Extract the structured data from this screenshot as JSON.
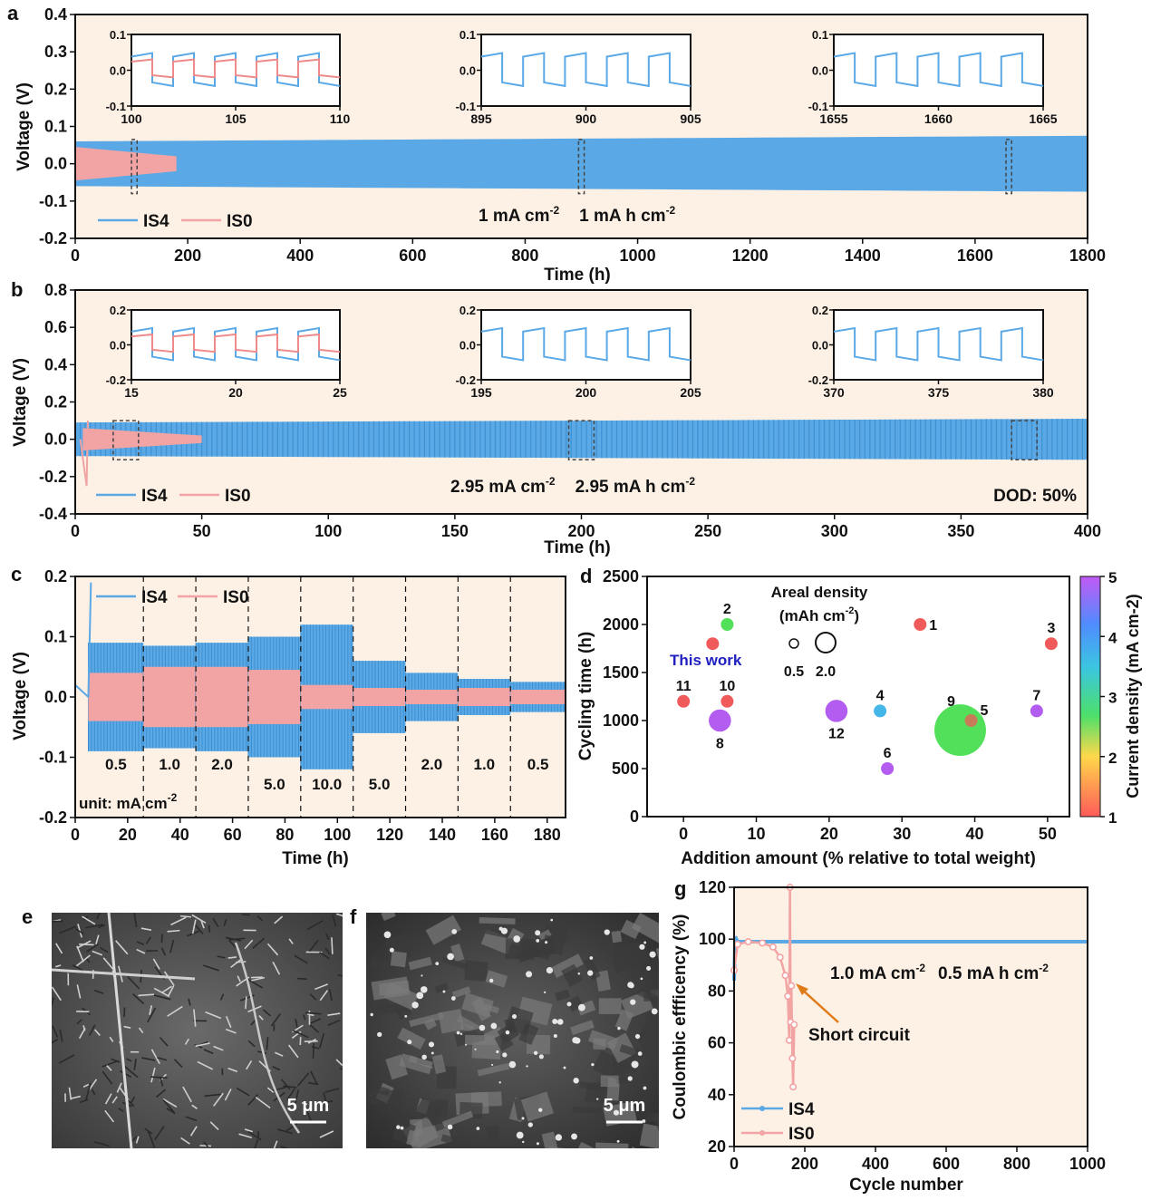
{
  "chart_data": [
    {
      "panel": "a",
      "type": "line",
      "xlabel": "Time (h)",
      "ylabel": "Voltage (V)",
      "xlim": [
        0,
        1800
      ],
      "ylim": [
        -0.2,
        0.4
      ],
      "xticks": [
        "0",
        "200",
        "400",
        "600",
        "800",
        "1000",
        "1200",
        "1400",
        "1600",
        "1800"
      ],
      "yticks": [
        "-0.2",
        "-0.1",
        "0.0",
        "0.1",
        "0.2",
        "0.3",
        "0.4"
      ],
      "annotation": [
        "1 mA cm",
        "-2",
        "1 mA h cm",
        "-2"
      ],
      "series": [
        {
          "name": "IS4",
          "color": "#5aa9e6",
          "duration_h": 1800,
          "amplitude_start": 0.06,
          "amplitude_end": 0.075
        },
        {
          "name": "IS0",
          "color": "#f2a3a3",
          "duration_h": 180,
          "amplitude_start": 0.045,
          "amplitude_end": 0.02
        }
      ],
      "zoom_windows": [
        [
          100,
          110
        ],
        [
          895,
          905
        ],
        [
          1655,
          1665
        ]
      ],
      "insets": [
        {
          "xlim": [
            100,
            110
          ],
          "ylim": [
            -0.1,
            0.1
          ],
          "xticks": [
            "100",
            "105",
            "110"
          ],
          "yticks": [
            "0.1",
            "0.0",
            "-0.1"
          ]
        },
        {
          "xlim": [
            895,
            905
          ],
          "ylim": [
            -0.1,
            0.1
          ],
          "xticks": [
            "895",
            "900",
            "905"
          ],
          "yticks": [
            "0.1",
            "0.0",
            "-0.1"
          ]
        },
        {
          "xlim": [
            1655,
            1665
          ],
          "ylim": [
            -0.1,
            0.1
          ],
          "xticks": [
            "1655",
            "1660",
            "1665"
          ],
          "yticks": [
            "0.1",
            "0.0",
            "-0.1"
          ]
        }
      ]
    },
    {
      "panel": "b",
      "type": "line",
      "xlabel": "Time (h)",
      "ylabel": "Voltage (V)",
      "xlim": [
        0,
        400
      ],
      "ylim": [
        -0.4,
        0.8
      ],
      "xticks": [
        "0",
        "50",
        "100",
        "150",
        "200",
        "250",
        "300",
        "350",
        "400"
      ],
      "yticks": [
        "-0.4",
        "-0.2",
        "0.0",
        "0.2",
        "0.4",
        "0.6",
        "0.8"
      ],
      "annotation": [
        "2.95 mA cm",
        "-2",
        "2.95 mA h cm",
        "-2"
      ],
      "dod_label": "DOD: 50%",
      "series": [
        {
          "name": "IS4",
          "color": "#5aa9e6",
          "duration_h": 400,
          "amplitude_start": 0.09,
          "amplitude_end": 0.11
        },
        {
          "name": "IS0",
          "color": "#f2a3a3",
          "duration_h": 50,
          "amplitude_start": 0.06,
          "amplitude_end": 0.02
        }
      ],
      "zoom_windows": [
        [
          15,
          25
        ],
        [
          195,
          205
        ],
        [
          370,
          380
        ]
      ],
      "insets": [
        {
          "xlim": [
            15,
            25
          ],
          "ylim": [
            -0.2,
            0.2
          ],
          "xticks": [
            "15",
            "20",
            "25"
          ],
          "yticks": [
            "0.2",
            "0.0",
            "-0.2"
          ]
        },
        {
          "xlim": [
            195,
            205
          ],
          "ylim": [
            -0.2,
            0.2
          ],
          "xticks": [
            "195",
            "200",
            "205"
          ],
          "yticks": [
            "0.2",
            "0.0",
            "-0.2"
          ]
        },
        {
          "xlim": [
            370,
            380
          ],
          "ylim": [
            -0.2,
            0.2
          ],
          "xticks": [
            "370",
            "375",
            "380"
          ],
          "yticks": [
            "0.2",
            "0.0",
            "-0.2"
          ]
        }
      ]
    },
    {
      "panel": "c",
      "type": "line",
      "xlabel": "Time (h)",
      "ylabel": "Voltage (V)",
      "xlim": [
        0,
        187
      ],
      "ylim": [
        -0.2,
        0.2
      ],
      "xticks": [
        "0",
        "20",
        "40",
        "60",
        "80",
        "100",
        "120",
        "140",
        "160",
        "180"
      ],
      "yticks": [
        "-0.2",
        "-0.1",
        "0.0",
        "0.1",
        "0.2"
      ],
      "unit_label": [
        "unit: mA cm",
        "-2"
      ],
      "segments": [
        {
          "start": 5,
          "end": 26,
          "current": "0.5",
          "is4_amp": 0.09,
          "is0_amp": 0.04
        },
        {
          "start": 26,
          "end": 46,
          "current": "1.0",
          "is4_amp": 0.085,
          "is0_amp": 0.05
        },
        {
          "start": 46,
          "end": 66,
          "current": "2.0",
          "is4_amp": 0.09,
          "is0_amp": 0.05
        },
        {
          "start": 66,
          "end": 86,
          "current": "5.0",
          "is4_amp": 0.1,
          "is0_amp": 0.045
        },
        {
          "start": 86,
          "end": 106,
          "current": "10.0",
          "is4_amp": 0.12,
          "is0_amp": 0.02
        },
        {
          "start": 106,
          "end": 126,
          "current": "5.0",
          "is4_amp": 0.06,
          "is0_amp": 0.015
        },
        {
          "start": 126,
          "end": 146,
          "current": "2.0",
          "is4_amp": 0.04,
          "is0_amp": 0.012
        },
        {
          "start": 146,
          "end": 166,
          "current": "1.0",
          "is4_amp": 0.03,
          "is0_amp": 0.015
        },
        {
          "start": 166,
          "end": 187,
          "current": "0.5",
          "is4_amp": 0.025,
          "is0_amp": 0.012
        }
      ],
      "series": [
        {
          "name": "IS4",
          "color": "#5aa9e6"
        },
        {
          "name": "IS0",
          "color": "#f2a3a3"
        }
      ]
    },
    {
      "panel": "d",
      "type": "scatter",
      "xlabel": "Addition amount (% relative to total weight)",
      "ylabel": "Cycling time (h)",
      "colorbar_label": "Current density (mA cm-2)",
      "colorbar_ticks": [
        "1",
        "2",
        "3",
        "4",
        "5"
      ],
      "xlim": [
        -5,
        53
      ],
      "ylim": [
        0,
        2500
      ],
      "xticks": [
        "0",
        "10",
        "20",
        "30",
        "40",
        "50"
      ],
      "yticks": [
        "0",
        "500",
        "1000",
        "1500",
        "2000",
        "2500"
      ],
      "legend_title": [
        "Areal density",
        "(mAh cm",
        "-2",
        ")"
      ],
      "legend_sizes": [
        "0.5",
        "2.0"
      ],
      "this_work_label": "This work",
      "points": [
        {
          "label": "",
          "x": 4,
          "y": 1800,
          "current": 1,
          "areal": 1.0
        },
        {
          "label": "11",
          "x": 0,
          "y": 1200,
          "current": 1,
          "areal": 1.0
        },
        {
          "label": "10",
          "x": 6,
          "y": 1200,
          "current": 1,
          "areal": 1.0
        },
        {
          "label": "2",
          "x": 6,
          "y": 2000,
          "current": 2,
          "areal": 1.0
        },
        {
          "label": "8",
          "x": 5,
          "y": 1000,
          "current": 4.5,
          "areal": 2.6
        },
        {
          "label": "1",
          "x": 32.5,
          "y": 2000,
          "current": 1,
          "areal": 1.0
        },
        {
          "label": "3",
          "x": 50.5,
          "y": 1800,
          "current": 1,
          "areal": 1.0
        },
        {
          "label": "12",
          "x": 21,
          "y": 1100,
          "current": 4.5,
          "areal": 2.6
        },
        {
          "label": "4",
          "x": 27,
          "y": 1100,
          "current": 3,
          "areal": 1.0
        },
        {
          "label": "6",
          "x": 28,
          "y": 500,
          "current": 4.5,
          "areal": 1.0
        },
        {
          "label": "9",
          "x": 38,
          "y": 900,
          "current": 2,
          "areal": 7.5
        },
        {
          "label": "5",
          "x": 39.5,
          "y": 1000,
          "current": 1,
          "areal": 1.0
        },
        {
          "label": "7",
          "x": 48.5,
          "y": 1100,
          "current": 4.5,
          "areal": 1.0
        }
      ]
    },
    {
      "panel": "g",
      "type": "line",
      "xlabel": "Cycle number",
      "ylabel": "Coulombic effficency (%)",
      "xlim": [
        0,
        1000
      ],
      "ylim": [
        20,
        120
      ],
      "xticks": [
        "0",
        "200",
        "400",
        "600",
        "800",
        "1000"
      ],
      "yticks": [
        "20",
        "40",
        "60",
        "80",
        "100",
        "120"
      ],
      "annotation": [
        "1.0 mA cm",
        "-2",
        "0.5 mA h cm",
        "-2"
      ],
      "short_label": "Short circuit",
      "series": [
        {
          "name": "IS4",
          "color": "#5aa9e6",
          "points": [
            [
              0,
              84
            ],
            [
              3,
              101
            ],
            [
              10,
              99
            ],
            [
              100,
              99
            ],
            [
              300,
              99
            ],
            [
              600,
              99
            ],
            [
              1000,
              99
            ]
          ]
        },
        {
          "name": "IS0",
          "color": "#f2a3a3",
          "points": [
            [
              0,
              88
            ],
            [
              10,
              98
            ],
            [
              40,
              99
            ],
            [
              80,
              98.5
            ],
            [
              110,
              97
            ],
            [
              130,
              93
            ],
            [
              145,
              86
            ],
            [
              152,
              78
            ],
            [
              156,
              61
            ],
            [
              158,
              120
            ],
            [
              160,
              68
            ],
            [
              162,
              82
            ],
            [
              165,
              54
            ],
            [
              167,
              43
            ],
            [
              170,
              67
            ]
          ]
        }
      ]
    }
  ],
  "panel_letters": [
    "a",
    "b",
    "c",
    "d",
    "e",
    "f",
    "g"
  ],
  "images": {
    "e": {
      "scale_label": "5 μm"
    },
    "f": {
      "scale_label": "5 μm"
    }
  }
}
